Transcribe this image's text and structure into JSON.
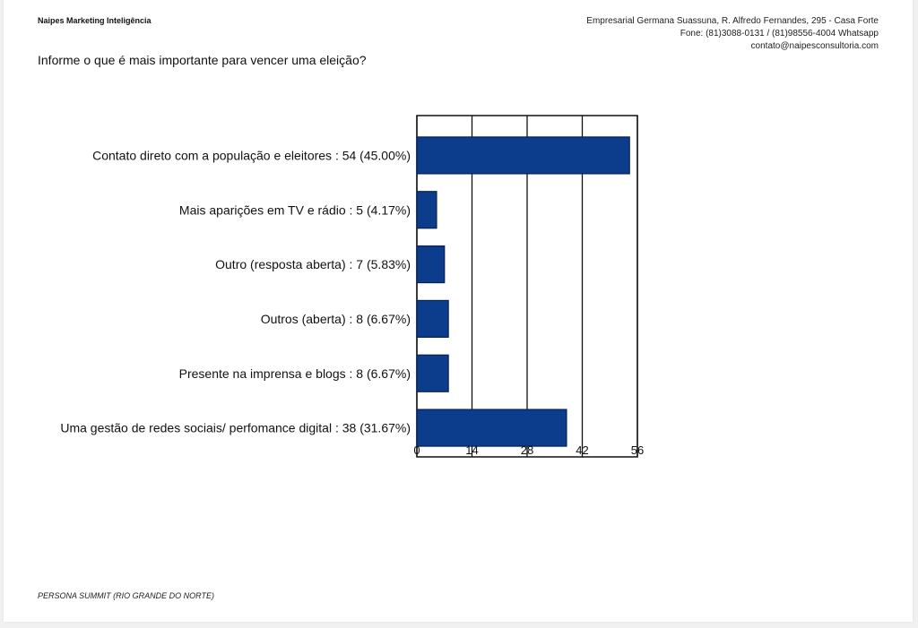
{
  "header": {
    "brand": "Naipes Marketing Inteligência",
    "address": "Empresarial Germana Suassuna, R. Alfredo Fernandes, 295 - Casa Forte",
    "phone": "Fone: (81)3088-0131 / (81)98556-4004 Whatsapp",
    "email": "contato@naipesconsultoria.com"
  },
  "question": "Informe o que é mais importante para vencer uma eleição?",
  "footer": "PERSONA SUMMIT (RIO GRANDE DO NORTE)",
  "colors": {
    "bar_fill": "#0b3d8c",
    "bar_stroke": "#06224f"
  },
  "chart_data": {
    "type": "bar",
    "orientation": "horizontal",
    "categories": [
      "Contato direto com a população e eleitores : 54 (45.00%)",
      "Mais aparições em TV e rádio : 5 (4.17%)",
      "Outro (resposta aberta) : 7 (5.83%)",
      "Outros (aberta) : 8 (6.67%)",
      "Presente na imprensa e blogs : 8 (6.67%)",
      "Uma gestão de redes sociais/ perfomance digital : 38 (31.67%)"
    ],
    "values": [
      54,
      5,
      7,
      8,
      8,
      38
    ],
    "xlim": [
      0,
      56
    ],
    "xticks": [
      0,
      14,
      28,
      42,
      56
    ],
    "grid": true
  }
}
